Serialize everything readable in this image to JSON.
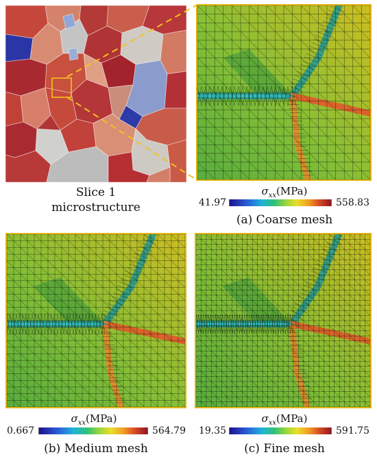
{
  "slice": {
    "caption_line1": "Slice 1",
    "caption_line2": "microstructure"
  },
  "panels": {
    "coarse": {
      "caption": "(a) Coarse mesh",
      "colorbar": {
        "var": "σ",
        "sub": "xx",
        "unit": "(MPa)",
        "min": "41.97",
        "max": "558.83"
      }
    },
    "medium": {
      "caption": "(b) Medium mesh",
      "colorbar": {
        "var": "σ",
        "sub": "xx",
        "unit": "(MPa)",
        "min": "0.667",
        "max": "564.79"
      }
    },
    "fine": {
      "caption": "(c) Fine mesh",
      "colorbar": {
        "var": "σ",
        "sub": "xx",
        "unit": "(MPa)",
        "min": "19.35",
        "max": "591.75"
      }
    }
  },
  "colors": {
    "frame": "#e3b313",
    "zoom_lines": "#f3c21e"
  }
}
